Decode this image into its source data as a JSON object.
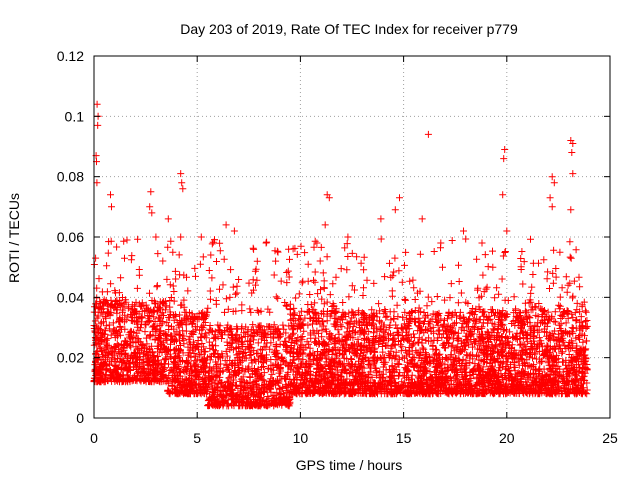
{
  "chart_data": {
    "type": "scatter",
    "title": "Day 203 of 2019, Rate Of TEC Index for receiver p779",
    "xlabel": "GPS time / hours",
    "ylabel": "ROTI / TECUs",
    "xlim": [
      0,
      25
    ],
    "ylim": [
      0,
      0.12
    ],
    "xticks": [
      0,
      5,
      10,
      15,
      20,
      25
    ],
    "yticks": [
      0,
      0.02,
      0.04,
      0.06,
      0.08,
      0.1,
      0.12
    ],
    "xtick_labels": [
      "0",
      "5",
      "10",
      "15",
      "20",
      "25"
    ],
    "ytick_labels": [
      "0",
      "0.02",
      "0.04",
      "0.06",
      "0.08",
      "0.1",
      "0.12"
    ],
    "grid": true,
    "marker": "+",
    "series": [
      {
        "name": "ROTI",
        "color": "#ff0000",
        "x_range": [
          0,
          23.9
        ],
        "typical_band": [
          0.008,
          0.035
        ],
        "outliers": [
          [
            0.15,
            0.104
          ],
          [
            0.2,
            0.1
          ],
          [
            0.18,
            0.097
          ],
          [
            0.1,
            0.087
          ],
          [
            0.12,
            0.085
          ],
          [
            0.14,
            0.078
          ],
          [
            0.8,
            0.074
          ],
          [
            0.85,
            0.07
          ],
          [
            2.75,
            0.075
          ],
          [
            2.7,
            0.07
          ],
          [
            2.8,
            0.068
          ],
          [
            3.6,
            0.066
          ],
          [
            4.2,
            0.081
          ],
          [
            4.25,
            0.078
          ],
          [
            4.3,
            0.076
          ],
          [
            4.2,
            0.06
          ],
          [
            5.2,
            0.06
          ],
          [
            6.4,
            0.064
          ],
          [
            6.8,
            0.062
          ],
          [
            11.3,
            0.074
          ],
          [
            11.4,
            0.073
          ],
          [
            11.2,
            0.064
          ],
          [
            13.9,
            0.066
          ],
          [
            14.8,
            0.073
          ],
          [
            14.6,
            0.069
          ],
          [
            16.2,
            0.094
          ],
          [
            15.9,
            0.066
          ],
          [
            17.9,
            0.062
          ],
          [
            19.9,
            0.089
          ],
          [
            19.85,
            0.086
          ],
          [
            19.8,
            0.074
          ],
          [
            22.2,
            0.08
          ],
          [
            22.3,
            0.078
          ],
          [
            22.1,
            0.073
          ],
          [
            22.2,
            0.07
          ],
          [
            23.1,
            0.092
          ],
          [
            23.2,
            0.091
          ],
          [
            23.15,
            0.088
          ],
          [
            23.2,
            0.081
          ],
          [
            23.1,
            0.069
          ],
          [
            20.0,
            0.062
          ],
          [
            18.8,
            0.058
          ],
          [
            16.8,
            0.058
          ],
          [
            12.3,
            0.06
          ],
          [
            1.6,
            0.059
          ],
          [
            3.0,
            0.06
          ],
          [
            8.8,
            0.052
          ],
          [
            10.8,
            0.058
          ]
        ]
      }
    ]
  }
}
